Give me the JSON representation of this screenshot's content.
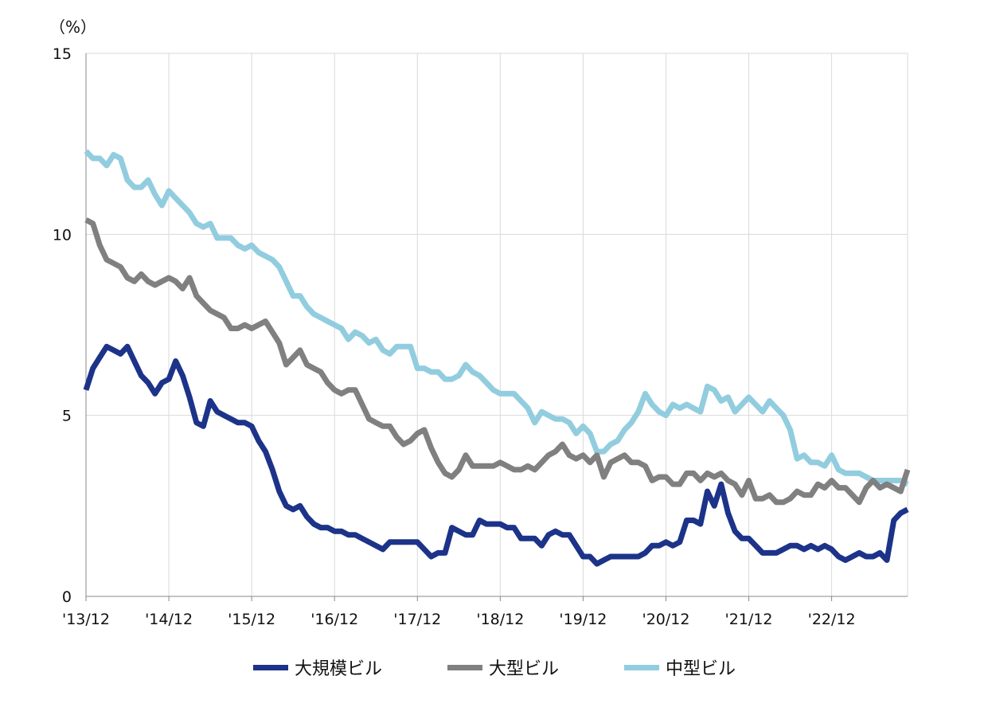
{
  "chart_data": {
    "type": "line",
    "unit_label": "（%）",
    "x_tick_labels": [
      "'13/12",
      "'14/12",
      "'15/12",
      "'16/12",
      "'17/12",
      "'18/12",
      "'19/12",
      "'20/12",
      "'21/12",
      "'22/12"
    ],
    "y_ticks": [
      "0",
      "5",
      "10",
      "15"
    ],
    "ylim": [
      0,
      15
    ],
    "x_start": "2013-12",
    "grid": true,
    "legend_position": "bottom",
    "series": [
      {
        "name": "大規模ビル",
        "color": "#1c3389",
        "values": [
          5.7,
          6.3,
          6.6,
          6.9,
          6.8,
          6.7,
          6.9,
          6.5,
          6.1,
          5.9,
          5.6,
          5.9,
          6.0,
          6.5,
          6.1,
          5.5,
          4.8,
          4.7,
          5.4,
          5.1,
          5.0,
          4.9,
          4.8,
          4.8,
          4.7,
          4.3,
          4.0,
          3.5,
          2.9,
          2.5,
          2.4,
          2.5,
          2.2,
          2.0,
          1.9,
          1.9,
          1.8,
          1.8,
          1.7,
          1.7,
          1.6,
          1.5,
          1.4,
          1.3,
          1.5,
          1.5,
          1.5,
          1.5,
          1.5,
          1.3,
          1.1,
          1.2,
          1.2,
          1.9,
          1.8,
          1.7,
          1.7,
          2.1,
          2.0,
          2.0,
          2.0,
          1.9,
          1.9,
          1.6,
          1.6,
          1.6,
          1.4,
          1.7,
          1.8,
          1.7,
          1.7,
          1.4,
          1.1,
          1.1,
          0.9,
          1.0,
          1.1,
          1.1,
          1.1,
          1.1,
          1.1,
          1.2,
          1.4,
          1.4,
          1.5,
          1.4,
          1.5,
          2.1,
          2.1,
          2.0,
          2.9,
          2.5,
          3.1,
          2.3,
          1.8,
          1.6,
          1.6,
          1.4,
          1.2,
          1.2,
          1.2,
          1.3,
          1.4,
          1.4,
          1.3,
          1.4,
          1.3,
          1.4,
          1.3,
          1.1,
          1.0,
          1.1,
          1.2,
          1.1,
          1.1,
          1.2,
          1.0,
          2.1,
          2.3,
          2.4
        ]
      },
      {
        "name": "大型ビル",
        "color": "#808080",
        "values": [
          10.4,
          10.3,
          9.7,
          9.3,
          9.2,
          9.1,
          8.8,
          8.7,
          8.9,
          8.7,
          8.6,
          8.7,
          8.8,
          8.7,
          8.5,
          8.8,
          8.3,
          8.1,
          7.9,
          7.8,
          7.7,
          7.4,
          7.4,
          7.5,
          7.4,
          7.5,
          7.6,
          7.3,
          7.0,
          6.4,
          6.6,
          6.8,
          6.4,
          6.3,
          6.2,
          5.9,
          5.7,
          5.6,
          5.7,
          5.7,
          5.3,
          4.9,
          4.8,
          4.7,
          4.7,
          4.4,
          4.2,
          4.3,
          4.5,
          4.6,
          4.1,
          3.7,
          3.4,
          3.3,
          3.5,
          3.9,
          3.6,
          3.6,
          3.6,
          3.6,
          3.7,
          3.6,
          3.5,
          3.5,
          3.6,
          3.5,
          3.7,
          3.9,
          4.0,
          4.2,
          3.9,
          3.8,
          3.9,
          3.7,
          3.9,
          3.3,
          3.7,
          3.8,
          3.9,
          3.7,
          3.7,
          3.6,
          3.2,
          3.3,
          3.3,
          3.1,
          3.1,
          3.4,
          3.4,
          3.2,
          3.4,
          3.3,
          3.4,
          3.2,
          3.1,
          2.8,
          3.2,
          2.7,
          2.7,
          2.8,
          2.6,
          2.6,
          2.7,
          2.9,
          2.8,
          2.8,
          3.1,
          3.0,
          3.2,
          3.0,
          3.0,
          2.8,
          2.6,
          3.0,
          3.2,
          3.0,
          3.1,
          3.0,
          2.9,
          3.5
        ]
      },
      {
        "name": "中型ビル",
        "color": "#92cddf",
        "values": [
          12.3,
          12.1,
          12.1,
          11.9,
          12.2,
          12.1,
          11.5,
          11.3,
          11.3,
          11.5,
          11.1,
          10.8,
          11.2,
          11.0,
          10.8,
          10.6,
          10.3,
          10.2,
          10.3,
          9.9,
          9.9,
          9.9,
          9.7,
          9.6,
          9.7,
          9.5,
          9.4,
          9.3,
          9.1,
          8.7,
          8.3,
          8.3,
          8.0,
          7.8,
          7.7,
          7.6,
          7.5,
          7.4,
          7.1,
          7.3,
          7.2,
          7.0,
          7.1,
          6.8,
          6.7,
          6.9,
          6.9,
          6.9,
          6.3,
          6.3,
          6.2,
          6.2,
          6.0,
          6.0,
          6.1,
          6.4,
          6.2,
          6.1,
          5.9,
          5.7,
          5.6,
          5.6,
          5.6,
          5.4,
          5.2,
          4.8,
          5.1,
          5.0,
          4.9,
          4.9,
          4.8,
          4.5,
          4.7,
          4.5,
          4.0,
          4.0,
          4.2,
          4.3,
          4.6,
          4.8,
          5.1,
          5.6,
          5.3,
          5.1,
          5.0,
          5.3,
          5.2,
          5.3,
          5.2,
          5.1,
          5.8,
          5.7,
          5.4,
          5.5,
          5.1,
          5.3,
          5.5,
          5.3,
          5.1,
          5.4,
          5.2,
          5.0,
          4.6,
          3.8,
          3.9,
          3.7,
          3.7,
          3.6,
          3.9,
          3.5,
          3.4,
          3.4,
          3.4,
          3.3,
          3.2,
          3.2,
          3.2,
          3.2,
          3.2,
          3.1
        ]
      }
    ]
  }
}
